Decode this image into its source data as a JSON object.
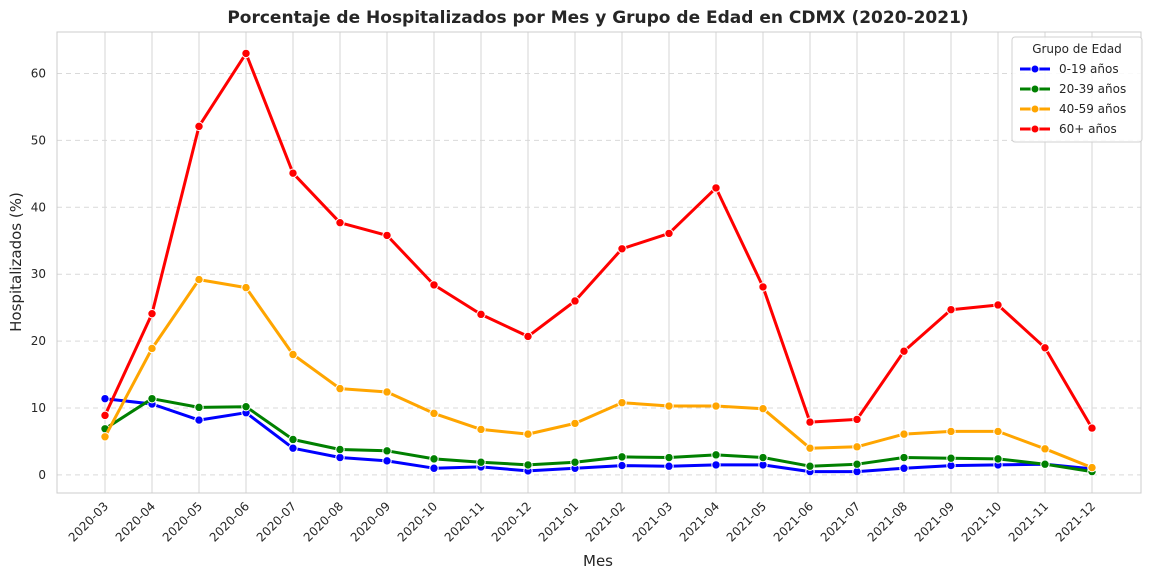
{
  "chart_data": {
    "type": "line",
    "title": "Porcentaje de Hospitalizados por Mes y Grupo de Edad en CDMX (2020-2021)",
    "xlabel": "Mes",
    "ylabel": "Hospitalizados (%)",
    "categories": [
      "2020-03",
      "2020-04",
      "2020-05",
      "2020-06",
      "2020-07",
      "2020-08",
      "2020-09",
      "2020-10",
      "2020-11",
      "2020-12",
      "2021-01",
      "2021-02",
      "2021-03",
      "2021-04",
      "2021-05",
      "2021-06",
      "2021-07",
      "2021-08",
      "2021-09",
      "2021-10",
      "2021-11",
      "2021-12"
    ],
    "yticks": [
      0,
      10,
      20,
      30,
      40,
      50,
      60
    ],
    "ylim": [
      -2.7,
      66.2
    ],
    "grid": true,
    "legend": {
      "title": "Grupo de Edad",
      "placement": "top-right"
    },
    "series": [
      {
        "name": "0-19 años",
        "color": "#0000ff",
        "values": [
          11.4,
          10.6,
          8.2,
          9.3,
          4.0,
          2.6,
          2.1,
          1.0,
          1.2,
          0.6,
          1.0,
          1.4,
          1.3,
          1.5,
          1.5,
          0.5,
          0.5,
          1.0,
          1.4,
          1.5,
          1.6,
          0.9
        ]
      },
      {
        "name": "20-39 años",
        "color": "#008000",
        "values": [
          6.9,
          11.4,
          10.1,
          10.2,
          5.3,
          3.8,
          3.6,
          2.4,
          1.9,
          1.5,
          1.9,
          2.7,
          2.6,
          3.0,
          2.6,
          1.3,
          1.6,
          2.6,
          2.5,
          2.4,
          1.6,
          0.5
        ]
      },
      {
        "name": "40-59 años",
        "color": "#ffa500",
        "values": [
          5.7,
          18.9,
          29.2,
          28.0,
          18.0,
          12.9,
          12.4,
          9.2,
          6.8,
          6.1,
          7.7,
          10.8,
          10.3,
          10.3,
          9.9,
          4.0,
          4.2,
          6.1,
          6.5,
          6.5,
          3.9,
          1.1
        ]
      },
      {
        "name": "60+ años",
        "color": "#ff0000",
        "values": [
          8.9,
          24.1,
          52.1,
          63.0,
          45.1,
          37.7,
          35.8,
          28.4,
          24.0,
          20.7,
          26.0,
          33.8,
          36.1,
          42.9,
          28.1,
          7.9,
          8.3,
          18.5,
          24.7,
          25.4,
          19.0,
          7.0
        ]
      }
    ]
  }
}
